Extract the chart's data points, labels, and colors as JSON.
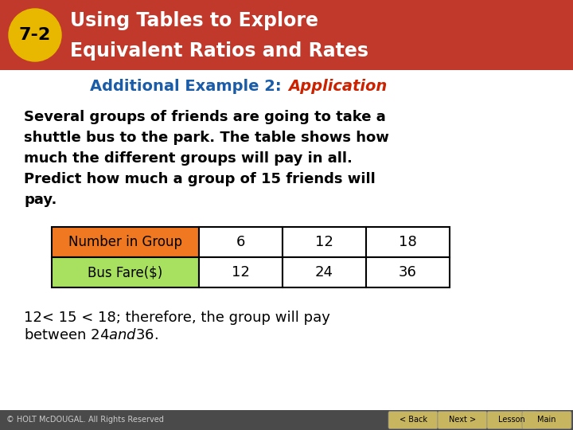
{
  "header_bg": "#c0392b",
  "header_text_color": "#ffffff",
  "badge_bg": "#e8b800",
  "badge_text": "7-2",
  "title_line1": "Using Tables to Explore",
  "title_line2": "Equivalent Ratios and Rates",
  "subtitle_normal": "Additional Example 2: ",
  "subtitle_italic": "Application",
  "subtitle_normal_color": "#1a5ca8",
  "subtitle_italic_color": "#cc2200",
  "body_text_lines": [
    "Several groups of friends are going to take a",
    "shuttle bus to the park. The table shows how",
    "much the different groups will pay in all.",
    "Predict how much a group of 15 friends will",
    "pay."
  ],
  "body_color": "#000000",
  "table_row1_label": "Number in Group",
  "table_row1_values": [
    "6",
    "12",
    "18"
  ],
  "table_row1_label_bg": "#f07820",
  "table_row2_label": "Bus Fare($)",
  "table_row2_values": [
    "12",
    "24",
    "36"
  ],
  "table_row2_label_bg": "#a8e060",
  "table_border_color": "#000000",
  "conclusion_line1": "12< 15 < 18; therefore, the group will pay",
  "conclusion_line2": "between $24 and $36.",
  "footer_bg": "#4a4a4a",
  "footer_btn_bg": "#c8b560",
  "footer_btn_text": "#000000",
  "footer_btn_labels": [
    "< Back",
    "Next >",
    "Lesson",
    "Main"
  ],
  "copyright_text": "© HOLT McDOUGAL. All Rights Reserved",
  "bg_color": "#ffffff"
}
